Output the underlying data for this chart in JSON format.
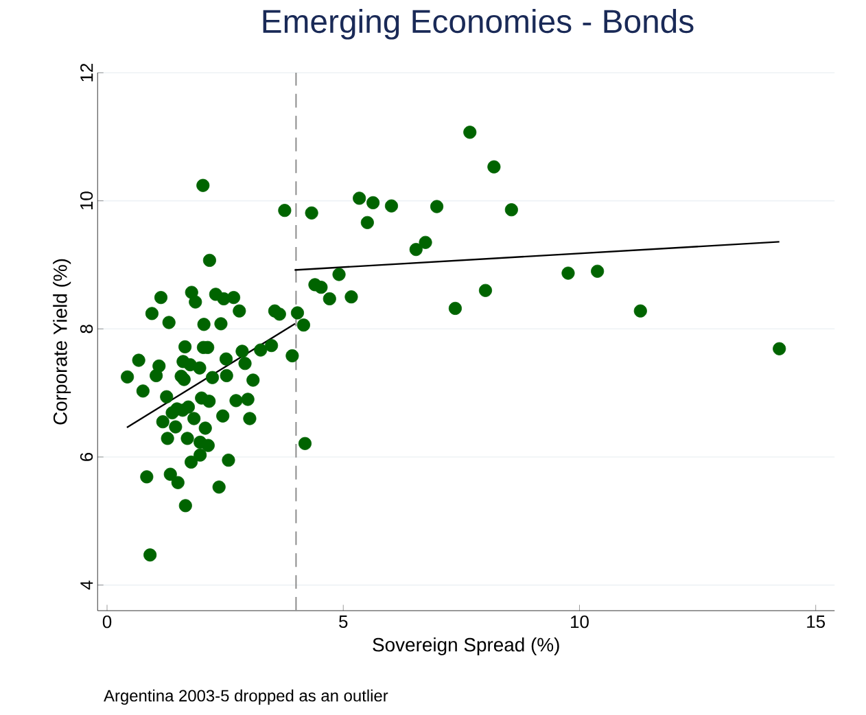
{
  "chart_data": {
    "type": "scatter",
    "title": "Emerging Economies - Bonds",
    "xlabel": "Sovereign Spread (%)",
    "ylabel": "Corporate Yield (%)",
    "annotations": [
      "Argentina 2003-5 dropped as an outlier"
    ],
    "xlim": [
      -0.2,
      15.4
    ],
    "ylim": [
      3.6,
      12
    ],
    "xticks": [
      0,
      5,
      10,
      15
    ],
    "yticks": [
      4,
      6,
      8,
      10,
      12
    ],
    "grid": "y",
    "marker": "circle",
    "ref_lines": [
      {
        "axis": "x",
        "value": 4,
        "color": "#8c8c8c",
        "line_style": "dashed"
      }
    ],
    "series": [
      {
        "color": "#006400",
        "x": [
          3.76,
          4.33,
          5.34,
          5.63,
          5.51,
          6.02,
          6.98,
          7.68,
          8.19,
          8.56,
          6.54,
          6.74,
          4.4,
          4.53,
          4.91,
          4.71,
          5.17,
          7.37,
          8.01,
          9.76,
          10.38,
          11.29,
          14.23,
          4.03,
          4.16,
          3.92,
          4.19,
          2.03,
          2.17,
          1.14,
          1.79,
          1.87,
          2.3,
          2.47,
          2.68,
          2.8,
          0.95,
          1.31,
          2.05,
          2.41,
          3.55,
          3.65,
          0.67,
          0.43,
          1.1,
          1.04,
          0.76,
          1.65,
          2.04,
          2.13,
          1.61,
          1.76,
          1.96,
          1.57,
          1.63,
          2.23,
          2.52,
          2.53,
          2.86,
          2.92,
          3.25,
          3.48,
          3.09,
          1.26,
          1.48,
          1.72,
          2.0,
          2.16,
          1.38,
          1.18,
          1.84,
          1.45,
          2.45,
          2.73,
          2.98,
          3.02,
          2.08,
          1.28,
          1.7,
          1.97,
          2.14,
          1.97,
          1.78,
          2.57,
          0.84,
          1.34,
          1.5,
          2.37,
          1.66,
          0.91,
          1.6
        ],
        "values": [
          9.85,
          9.81,
          10.04,
          9.97,
          9.66,
          9.92,
          9.91,
          11.07,
          10.53,
          9.86,
          9.24,
          9.35,
          8.69,
          8.65,
          8.85,
          8.47,
          8.5,
          8.32,
          8.6,
          8.87,
          8.9,
          8.28,
          7.69,
          8.25,
          8.06,
          7.58,
          6.21,
          10.24,
          9.07,
          8.49,
          8.57,
          8.42,
          8.54,
          8.47,
          8.49,
          8.28,
          8.24,
          8.1,
          8.07,
          8.08,
          8.28,
          8.23,
          7.51,
          7.25,
          7.42,
          7.27,
          7.03,
          7.72,
          7.71,
          7.71,
          7.49,
          7.44,
          7.39,
          7.26,
          7.21,
          7.24,
          7.53,
          7.27,
          7.65,
          7.46,
          7.67,
          7.74,
          7.2,
          6.94,
          6.75,
          6.78,
          6.92,
          6.87,
          6.69,
          6.55,
          6.6,
          6.47,
          6.64,
          6.88,
          6.9,
          6.6,
          6.45,
          6.29,
          6.29,
          6.23,
          6.18,
          6.03,
          5.92,
          5.95,
          5.69,
          5.73,
          5.6,
          5.53,
          5.24,
          4.47,
          6.73
        ]
      },
      {
        "type": "line",
        "color": "#000000",
        "marker": "none",
        "line_style": "solid",
        "x": [
          0.42,
          3.98
        ],
        "values": [
          6.46,
          8.08
        ]
      },
      {
        "type": "line",
        "color": "#000000",
        "marker": "none",
        "line_style": "solid",
        "x": [
          3.97,
          14.23
        ],
        "values": [
          8.92,
          9.36
        ]
      }
    ]
  }
}
